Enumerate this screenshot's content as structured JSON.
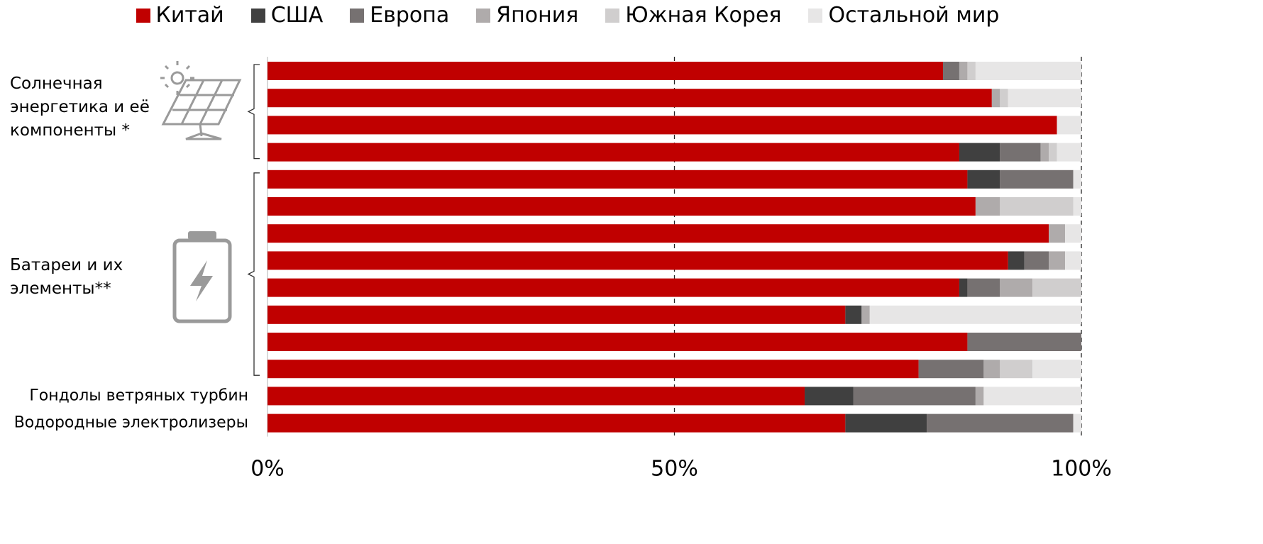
{
  "chart_data": {
    "type": "stacked_barh",
    "categories": [
      null,
      null,
      null,
      null,
      null,
      null,
      null,
      null,
      null,
      null,
      null,
      null,
      "Гондолы ветряных турбин",
      "Водородные электролизеры"
    ],
    "series": [
      {
        "name": "Китай",
        "color": "#c00000",
        "values": [
          83,
          89,
          97,
          85,
          86,
          87,
          96,
          91,
          85,
          71,
          86,
          80,
          66,
          71
        ]
      },
      {
        "name": "США",
        "color": "#404040",
        "values": [
          0,
          0,
          0,
          5,
          4,
          0,
          0,
          2,
          1,
          2,
          0,
          0,
          6,
          10
        ]
      },
      {
        "name": "Европа",
        "color": "#767171",
        "values": [
          2,
          0,
          0,
          5,
          9,
          0,
          0,
          3,
          4,
          0,
          14,
          8,
          15,
          18
        ]
      },
      {
        "name": "Япония",
        "color": "#afabab",
        "values": [
          1,
          1,
          0,
          1,
          0,
          3,
          2,
          2,
          4,
          1,
          0,
          2,
          1,
          0
        ]
      },
      {
        "name": "Южная Корея",
        "color": "#d0cece",
        "values": [
          1,
          1,
          0,
          1,
          0,
          9,
          0,
          0,
          6,
          0,
          0,
          4,
          0,
          0
        ]
      },
      {
        "name": "Остальной мир",
        "color": "#e7e6e6",
        "values": [
          13,
          9,
          3,
          3,
          1,
          1,
          2,
          2,
          0,
          26,
          0,
          6,
          12,
          1
        ]
      }
    ],
    "xlim": [
      0,
      100
    ],
    "xticks": [
      {
        "value": 0,
        "label": "0%"
      },
      {
        "value": 50,
        "label": "50%"
      },
      {
        "value": 100,
        "label": "100%"
      }
    ],
    "grid": true,
    "legend": "top",
    "annotations": [
      "Солнечная энергетика и её компоненты *",
      "Батареи и их элементы**"
    ]
  }
}
